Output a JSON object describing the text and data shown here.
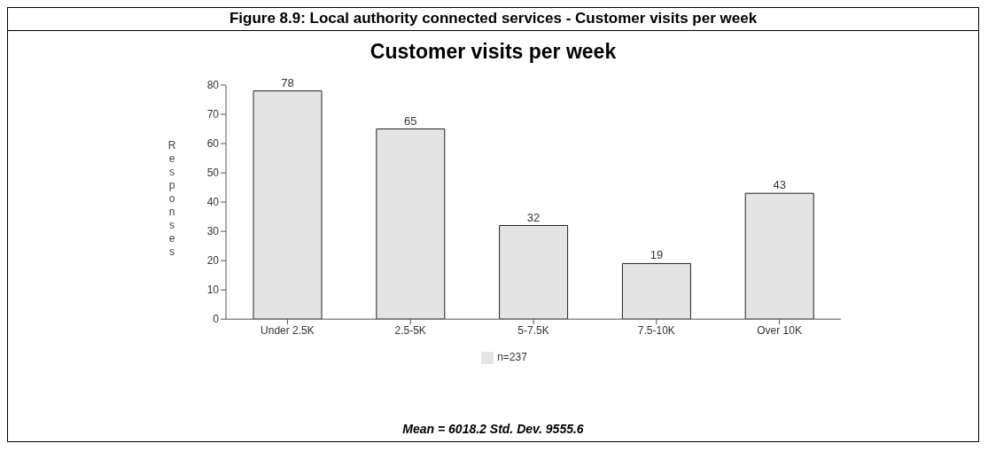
{
  "chart_data": {
    "type": "bar",
    "title": "Figure 8.9: Local authority connected services - Customer visits per week",
    "subtitle": "Customer visits per week",
    "ylabel": "Responses",
    "categories": [
      "Under 2.5K",
      "2.5-5K",
      "5-7.5K",
      "7.5-10K",
      "Over 10K"
    ],
    "series": [
      {
        "name": "n=237",
        "color": "#e4e4e4",
        "values": [
          78,
          65,
          32,
          19,
          43
        ]
      }
    ],
    "ylim": [
      0,
      80
    ],
    "yticks": [
      0,
      10,
      20,
      30,
      40,
      50,
      60,
      70,
      80
    ],
    "legend": "bottom",
    "data_labels": true,
    "annotations": [
      "Mean = 6018.2 Std. Dev. 9555.6"
    ]
  }
}
